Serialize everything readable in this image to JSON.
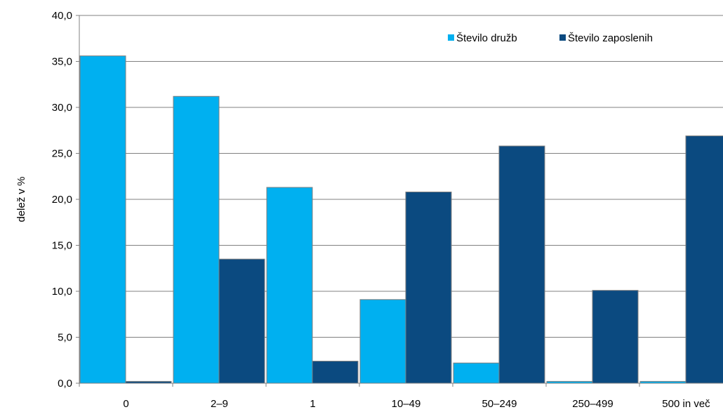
{
  "chart_data": {
    "type": "bar",
    "categories": [
      "0",
      "2–9",
      "1",
      "10–49",
      "50–249",
      "250–499",
      "500 in več"
    ],
    "series": [
      {
        "name": "Število družb",
        "color": "#00b0f0",
        "values": [
          35.6,
          31.2,
          21.3,
          9.1,
          2.2,
          0.2,
          0.2
        ]
      },
      {
        "name": "Število zaposlenih",
        "color": "#0b4a80",
        "values": [
          0.2,
          13.5,
          2.4,
          20.8,
          25.8,
          10.1,
          26.9
        ]
      }
    ],
    "ylabel": "delež v %",
    "ylim": [
      0,
      40
    ],
    "yticks": [
      "0,0",
      "5,0",
      "10,0",
      "15,0",
      "20,0",
      "25,0",
      "30,0",
      "35,0",
      "40,0"
    ],
    "grid": true,
    "legend_position": "top-right"
  }
}
